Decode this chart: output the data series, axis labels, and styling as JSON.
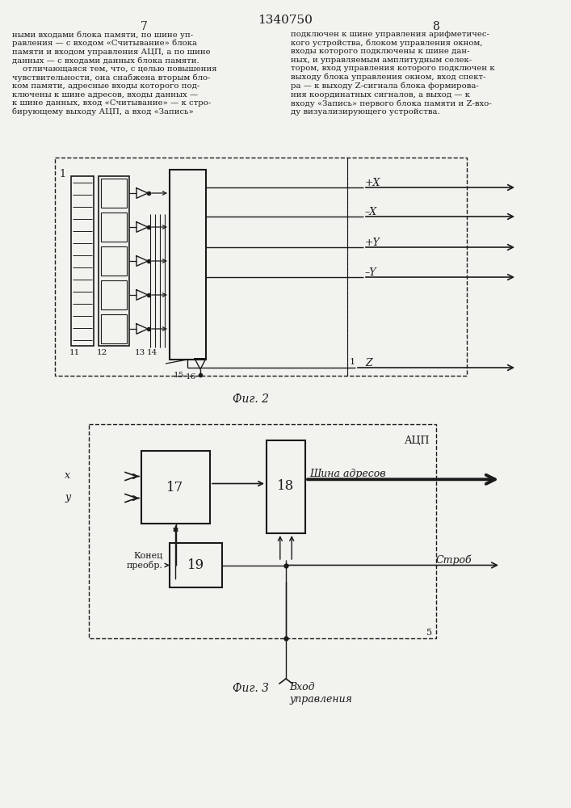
{
  "title": "1340750",
  "page_left": "7",
  "page_right": "8",
  "fig2_label": "Фиг. 2",
  "fig3_label": "Фиг. 3",
  "bg_color": "#f2f2ee",
  "line_color": "#1a1a1a"
}
